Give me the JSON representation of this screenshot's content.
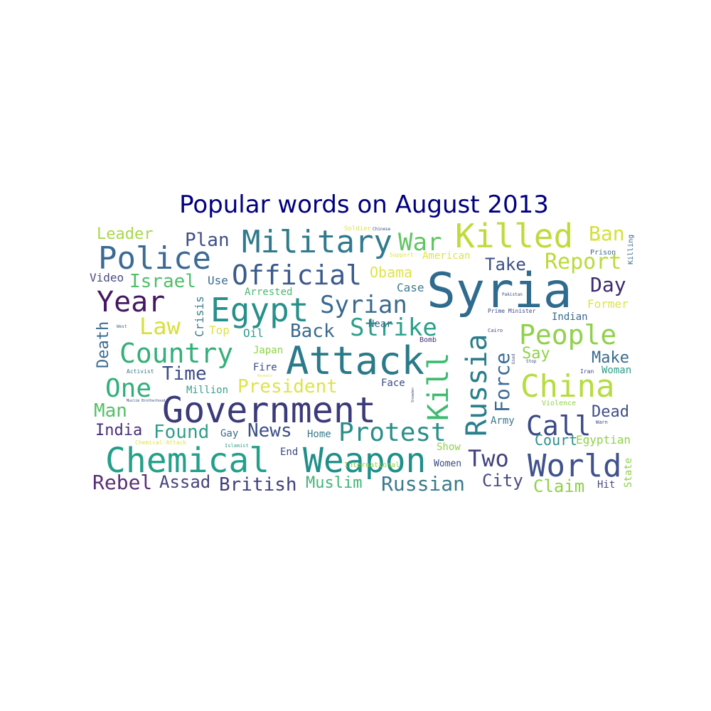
{
  "title": "Popular words on August 2013",
  "words": [
    {
      "text": "Syria",
      "color": "#2f6b8e"
    },
    {
      "text": "Government",
      "color": "#3b3a7a"
    },
    {
      "text": "Attack",
      "color": "#2a7a8a"
    },
    {
      "text": "Chemical",
      "color": "#22a08a"
    },
    {
      "text": "Weapon",
      "color": "#1f8f8a"
    },
    {
      "text": "Killed",
      "color": "#c0da3a"
    },
    {
      "text": "Military",
      "color": "#2f7a8e"
    },
    {
      "text": "Police",
      "color": "#3b6b95"
    },
    {
      "text": "Egypt",
      "color": "#27908a"
    },
    {
      "text": "Official",
      "color": "#3a5a8c"
    },
    {
      "text": "China",
      "color": "#b6dd3f"
    },
    {
      "text": "World",
      "color": "#3f528c"
    },
    {
      "text": "People",
      "color": "#8fd24a"
    },
    {
      "text": "Russia",
      "color": "#2a7f8d"
    },
    {
      "text": "Country",
      "color": "#35b07a"
    },
    {
      "text": "Year",
      "color": "#461662"
    },
    {
      "text": "Protest",
      "color": "#2a8f8a"
    },
    {
      "text": "Kill",
      "color": "#3dbb70"
    },
    {
      "text": "Syrian",
      "color": "#3a6a90"
    },
    {
      "text": "War",
      "color": "#5fc562"
    },
    {
      "text": "Call",
      "color": "#3a4a86"
    },
    {
      "text": "Strike",
      "color": "#2aa08a"
    },
    {
      "text": "One",
      "color": "#2fb07a"
    },
    {
      "text": "Report",
      "color": "#bada3a"
    },
    {
      "text": "Russian",
      "color": "#3a7a8c"
    },
    {
      "text": "Two",
      "color": "#424280"
    },
    {
      "text": "Force",
      "color": "#3b6b96"
    },
    {
      "text": "Day",
      "color": "#3d2a6e"
    },
    {
      "text": "Law",
      "color": "#d8e03a"
    },
    {
      "text": "Back",
      "color": "#3a6a90"
    },
    {
      "text": "Plan",
      "color": "#3f4f88"
    },
    {
      "text": "Ban",
      "color": "#d4e03a"
    },
    {
      "text": "President",
      "color": "#dde34a"
    },
    {
      "text": "News",
      "color": "#3a4f88"
    },
    {
      "text": "Found",
      "color": "#2f9e8a"
    },
    {
      "text": "Time",
      "color": "#3a4a85"
    },
    {
      "text": "Israel",
      "color": "#50bf6a"
    },
    {
      "text": "Leader",
      "color": "#a9d84a"
    },
    {
      "text": "Obama",
      "color": "#dfe34a"
    },
    {
      "text": "Take",
      "color": "#3c4f87"
    },
    {
      "text": "British",
      "color": "#3f3f7e"
    },
    {
      "text": "Muslim",
      "color": "#42b478"
    },
    {
      "text": "Rebel",
      "color": "#5a2f78"
    },
    {
      "text": "Assad",
      "color": "#45427f"
    },
    {
      "text": "City",
      "color": "#4a4a82"
    },
    {
      "text": "Claim",
      "color": "#8fd24a"
    },
    {
      "text": "Dead",
      "color": "#3f4f88"
    },
    {
      "text": "Make",
      "color": "#3a6a90"
    },
    {
      "text": "Say",
      "color": "#8fd24a"
    },
    {
      "text": "Man",
      "color": "#55c068"
    },
    {
      "text": "India",
      "color": "#4a2f78"
    },
    {
      "text": "Death",
      "color": "#3a6a90"
    },
    {
      "text": "Court",
      "color": "#2f8f8a"
    },
    {
      "text": "Egyptian",
      "color": "#8fd24a"
    },
    {
      "text": "Video",
      "color": "#4a4a82"
    },
    {
      "text": "Use",
      "color": "#3a6a90"
    },
    {
      "text": "Crisis",
      "color": "#3a7a8c"
    },
    {
      "text": "Top",
      "color": "#dde34a"
    },
    {
      "text": "Oil",
      "color": "#2f9e8a"
    },
    {
      "text": "Arrested",
      "color": "#4ab872"
    },
    {
      "text": "Case",
      "color": "#3a7a8c"
    },
    {
      "text": "Million",
      "color": "#3a9e8a"
    },
    {
      "text": "Japan",
      "color": "#8fd24a"
    },
    {
      "text": "Fire",
      "color": "#3a4a85"
    },
    {
      "text": "Near",
      "color": "#3a6a90"
    },
    {
      "text": "Face",
      "color": "#3a4a85"
    },
    {
      "text": "Gay",
      "color": "#3a6a90"
    },
    {
      "text": "Home",
      "color": "#3a7a8c"
    },
    {
      "text": "End",
      "color": "#3a4a85"
    },
    {
      "text": "Women",
      "color": "#3a4a85"
    },
    {
      "text": "Show",
      "color": "#8fd24a"
    },
    {
      "text": "Army",
      "color": "#3a7a8c"
    },
    {
      "text": "Indian",
      "color": "#3a6a90"
    },
    {
      "text": "Former",
      "color": "#dde34a"
    },
    {
      "text": "Woman",
      "color": "#2f9e8a"
    },
    {
      "text": "Hit",
      "color": "#4a4a82"
    },
    {
      "text": "State",
      "color": "#8fd24a"
    },
    {
      "text": "American",
      "color": "#dde34a"
    },
    {
      "text": "Violence",
      "color": "#8fd24a"
    },
    {
      "text": "International",
      "color": "#8fd24a"
    },
    {
      "text": "Bomb",
      "color": "#4a2f78"
    },
    {
      "text": "Killing",
      "color": "#3a6a90"
    },
    {
      "text": "Prison",
      "color": "#3a6a90"
    },
    {
      "text": "Soldier",
      "color": "#dde34a"
    },
    {
      "text": "Chinese",
      "color": "#3a4a85"
    },
    {
      "text": "Support",
      "color": "#dde34a"
    },
    {
      "text": "Prime Minister",
      "color": "#3a4a85"
    },
    {
      "text": "Pakistan",
      "color": "#3a4a85"
    },
    {
      "text": "Cairo",
      "color": "#3a4a85"
    },
    {
      "text": "West",
      "color": "#3a6a90"
    },
    {
      "text": "Activist",
      "color": "#3a7a8c"
    },
    {
      "text": "Muslim Brotherhood",
      "color": "#3a4a85"
    },
    {
      "text": "Chemical Attack",
      "color": "#dde34a"
    },
    {
      "text": "Islamist",
      "color": "#3a9e8a"
    },
    {
      "text": "Snowden",
      "color": "#3a4a85"
    },
    {
      "text": "Used",
      "color": "#3a4a85"
    },
    {
      "text": "Iran",
      "color": "#3a4a85"
    },
    {
      "text": "Warn",
      "color": "#3a4a85"
    },
    {
      "text": "Stop",
      "color": "#3a4a85"
    },
    {
      "text": "Reveals",
      "color": "#dde34a"
    },
    {
      "text": "Find",
      "color": "#dde34a"
    }
  ]
}
